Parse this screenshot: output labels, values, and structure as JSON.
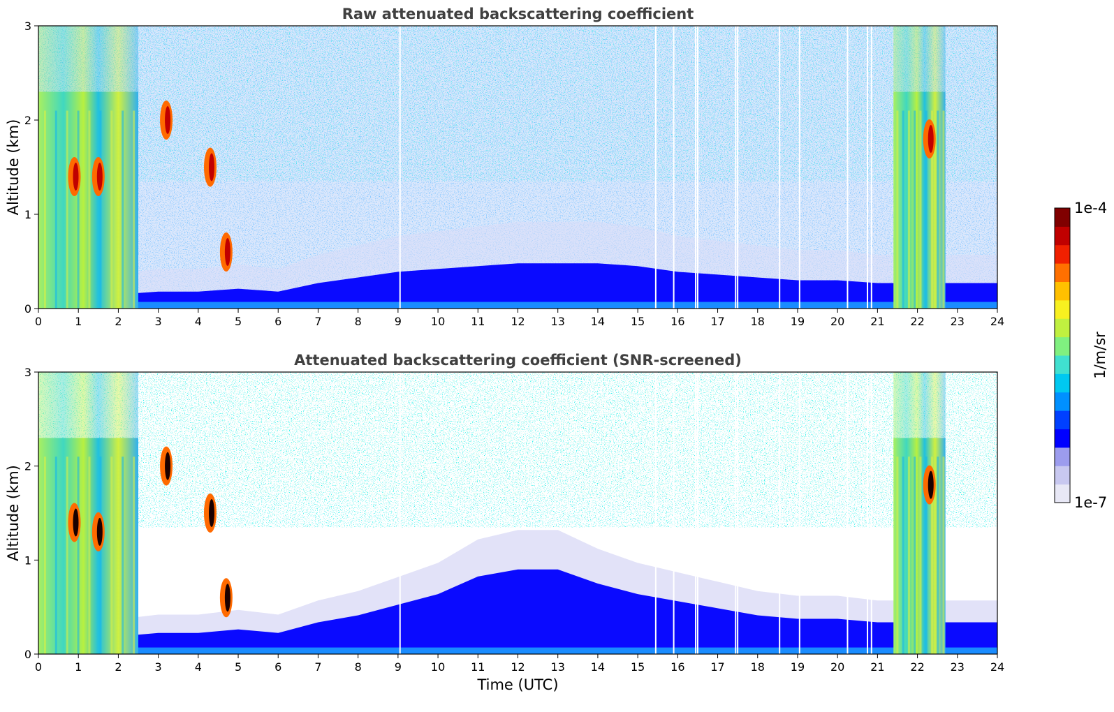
{
  "chart_data": [
    {
      "type": "heatmap",
      "title": "Raw attenuated backscattering coefficient",
      "xlabel": "",
      "ylabel": "Altitude (km)",
      "xlim": [
        0,
        24
      ],
      "ylim": [
        0,
        3
      ],
      "x_ticks": [
        "0",
        "1",
        "2",
        "3",
        "4",
        "5",
        "6",
        "7",
        "8",
        "9",
        "10",
        "11",
        "12",
        "13",
        "14",
        "15",
        "16",
        "17",
        "18",
        "19",
        "20",
        "21",
        "22",
        "23",
        "24"
      ],
      "y_ticks": [
        "0",
        "1",
        "2",
        "3"
      ],
      "grid": false,
      "colorscale": "log",
      "value_range": [
        1e-07,
        0.0001
      ],
      "features": {
        "boundary_layer_top_km": [
          0.35,
          0.2,
          0.25,
          0.3,
          0.3,
          0.35,
          0.3,
          0.45,
          0.55,
          0.65,
          0.7,
          0.75,
          0.8,
          0.8,
          0.8,
          0.75,
          0.65,
          0.6,
          0.55,
          0.5,
          0.5,
          0.45,
          0.45,
          0.45,
          0.45
        ],
        "aerosol_columns": [
          [
            0,
            2.5
          ],
          [
            21.4,
            22.7
          ]
        ],
        "cloud_patches": [
          [
            0.9,
            1.4
          ],
          [
            1.5,
            1.4
          ],
          [
            3.2,
            2.0
          ],
          [
            4.3,
            1.5
          ],
          [
            4.7,
            0.6
          ],
          [
            22.3,
            1.8
          ]
        ],
        "missing_profiles": [
          9.05,
          15.45,
          15.9,
          16.45,
          16.5,
          17.45,
          17.5,
          18.55,
          19.05,
          20.25,
          20.75,
          20.85
        ]
      }
    },
    {
      "type": "heatmap",
      "title": "Attenuated backscattering coefficient (SNR-screened)",
      "xlabel": "Time (UTC)",
      "ylabel": "Altitude (km)",
      "xlim": [
        0,
        24
      ],
      "ylim": [
        0,
        3
      ],
      "x_ticks": [
        "0",
        "1",
        "2",
        "3",
        "4",
        "5",
        "6",
        "7",
        "8",
        "9",
        "10",
        "11",
        "12",
        "13",
        "14",
        "15",
        "16",
        "17",
        "18",
        "19",
        "20",
        "21",
        "22",
        "23",
        "24"
      ],
      "y_ticks": [
        "0",
        "1",
        "2",
        "3"
      ],
      "grid": false,
      "colorscale": "log",
      "value_range": [
        1e-07,
        0.0001
      ],
      "features": {
        "boundary_layer_top_km": [
          0.35,
          0.2,
          0.25,
          0.3,
          0.3,
          0.35,
          0.3,
          0.45,
          0.55,
          0.7,
          0.85,
          1.1,
          1.2,
          1.2,
          1.0,
          0.85,
          0.75,
          0.65,
          0.55,
          0.5,
          0.5,
          0.45,
          0.45,
          0.45,
          0.45
        ],
        "aerosol_columns": [
          [
            0,
            2.5
          ],
          [
            21.4,
            22.7
          ]
        ],
        "cloud_patches": [
          [
            0.9,
            1.4
          ],
          [
            1.5,
            1.3
          ],
          [
            3.2,
            2.0
          ],
          [
            4.3,
            1.5
          ],
          [
            4.7,
            0.6
          ],
          [
            22.3,
            1.8
          ]
        ],
        "missing_profiles": [
          9.05,
          15.45,
          15.9,
          16.45,
          16.5,
          17.45,
          17.5,
          18.55,
          19.05,
          20.25,
          20.75,
          20.85
        ]
      }
    }
  ],
  "colorbar": {
    "label": "1/m/sr",
    "min_label": "1e-7",
    "max_label": "1e-4",
    "colors": [
      "#e8e8f6",
      "#c8c8f0",
      "#9c9cee",
      "#0000ff",
      "#0040ff",
      "#0090ff",
      "#00c8f0",
      "#40e0d0",
      "#80f080",
      "#c0f040",
      "#f8f020",
      "#ffc000",
      "#ff7000",
      "#f02000",
      "#c00000",
      "#800000"
    ]
  }
}
